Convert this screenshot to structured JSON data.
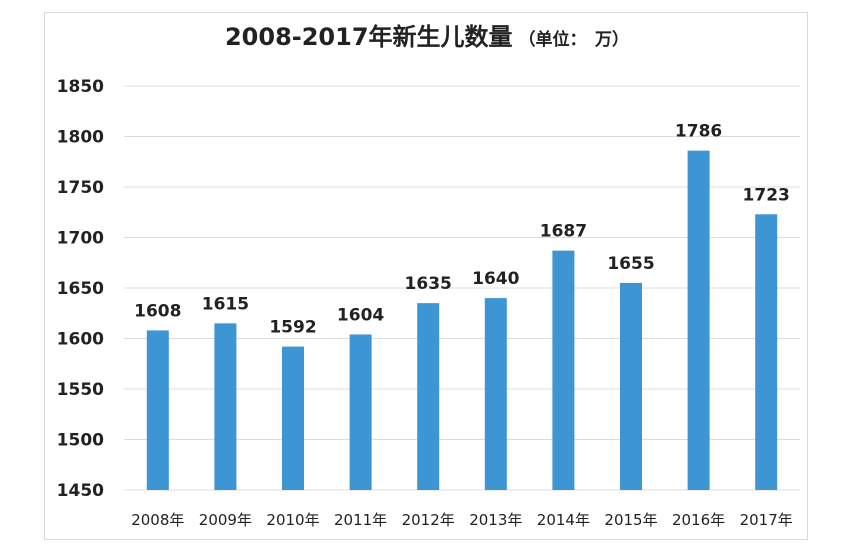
{
  "chart_data": {
    "type": "bar",
    "title": "2008-2017年新生儿数量",
    "unit_note": "（单位：　万）",
    "xlabel": "",
    "ylabel": "",
    "categories": [
      "2008年",
      "2009年",
      "2010年",
      "2011年",
      "2012年",
      "2013年",
      "2014年",
      "2015年",
      "2016年",
      "2017年"
    ],
    "values": [
      1608,
      1615,
      1592,
      1604,
      1635,
      1640,
      1687,
      1655,
      1786,
      1723
    ],
    "data_labels": [
      "1608",
      "1615",
      "1592",
      "1604",
      "1635",
      "1640",
      "1687",
      "1655",
      "1786",
      "1723"
    ],
    "ylim": [
      1450,
      1850
    ],
    "yticks": [
      1450,
      1500,
      1550,
      1600,
      1650,
      1700,
      1750,
      1800,
      1850
    ],
    "ytick_labels": [
      "1450",
      "1500",
      "1550",
      "1600",
      "1650",
      "1700",
      "1750",
      "1800",
      "1850"
    ],
    "grid": true,
    "legend": "none",
    "bar_color": "#3d95d4",
    "grid_color": "#dcdcdc"
  }
}
